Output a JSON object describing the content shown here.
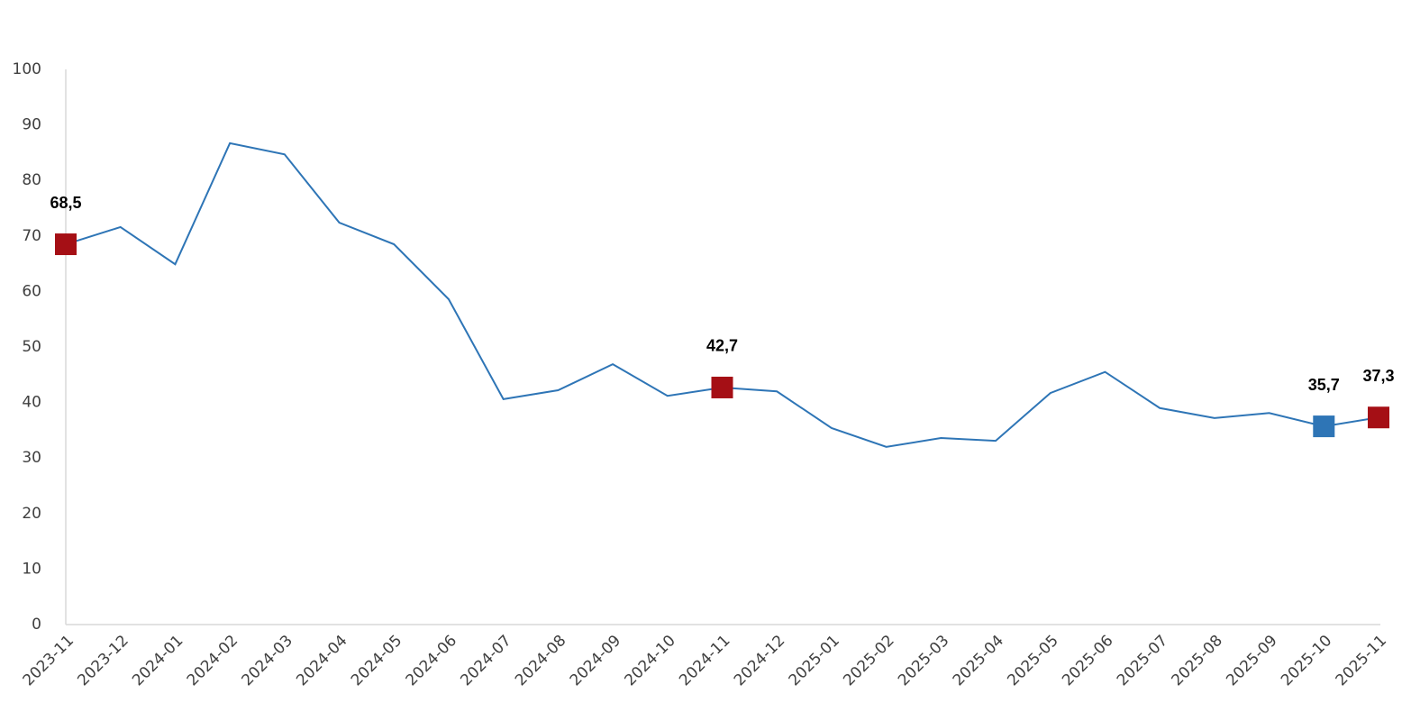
{
  "chart_data": {
    "type": "line",
    "categories": [
      "2023-11",
      "2023-12",
      "2024-01",
      "2024-02",
      "2024-03",
      "2024-04",
      "2024-05",
      "2024-06",
      "2024-07",
      "2024-08",
      "2024-09",
      "2024-10",
      "2024-11",
      "2024-12",
      "2025-01",
      "2025-02",
      "2025-03",
      "2025-04",
      "2025-05",
      "2025-06",
      "2025-07",
      "2025-08",
      "2025-09",
      "2025-10",
      "2025-11"
    ],
    "series": [
      {
        "color": "#2e75b6",
        "values": [
          68.5,
          71.6,
          64.9,
          86.7,
          84.7,
          72.4,
          68.5,
          58.6,
          40.6,
          42.2,
          46.9,
          41.2,
          42.7,
          42.0,
          35.4,
          32.0,
          33.6,
          33.1,
          41.7,
          45.5,
          39.0,
          37.2,
          38.1,
          35.7,
          37.3
        ],
        "value_labels": [
          "68,5",
          null,
          null,
          null,
          null,
          null,
          null,
          null,
          null,
          null,
          null,
          null,
          "42,7",
          null,
          null,
          null,
          null,
          null,
          null,
          null,
          null,
          null,
          null,
          "35,7",
          "37,3"
        ],
        "marker_colors": [
          "#a50f15",
          null,
          null,
          null,
          null,
          null,
          null,
          null,
          null,
          null,
          null,
          null,
          "#a50f15",
          null,
          null,
          null,
          null,
          null,
          null,
          null,
          null,
          null,
          null,
          "#2e75b6",
          "#a50f15"
        ]
      }
    ],
    "ylim": [
      0,
      100
    ],
    "yticks": [
      0,
      10,
      20,
      30,
      40,
      50,
      60,
      70,
      80,
      90,
      100
    ],
    "grid": false
  }
}
